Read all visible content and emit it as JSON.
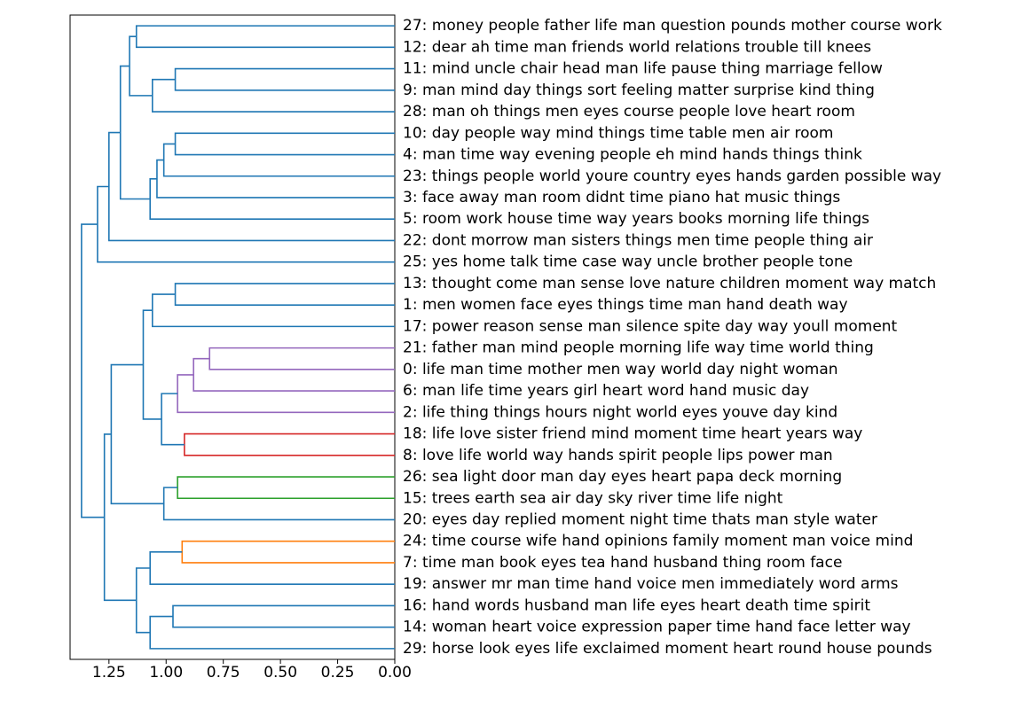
{
  "chart_data": {
    "type": "dendrogram",
    "orientation": "left",
    "xlabel": "",
    "ylabel": "",
    "xlim": [
      1.42,
      0.0
    ],
    "xticks": [
      1.25,
      1.0,
      0.75,
      0.5,
      0.25,
      0.0
    ],
    "xtick_labels": [
      "1.25",
      "1.00",
      "0.75",
      "0.50",
      "0.25",
      "0.00"
    ],
    "grid": false,
    "colors": {
      "blue": "#1f77b4",
      "orange": "#ff7f0e",
      "green": "#2ca02c",
      "red": "#d62728",
      "purple": "#9467bd"
    },
    "leaves": [
      {
        "id": 27,
        "label": "27: money people father life man question pounds mother course work"
      },
      {
        "id": 12,
        "label": "12: dear ah time man friends world relations trouble till knees"
      },
      {
        "id": 11,
        "label": "11: mind uncle chair head man life pause thing marriage fellow"
      },
      {
        "id": 9,
        "label": "9: man mind day things sort feeling matter surprise kind thing"
      },
      {
        "id": 28,
        "label": "28: man oh things men eyes course people love heart room"
      },
      {
        "id": 10,
        "label": "10: day people way mind things time table men air room"
      },
      {
        "id": 4,
        "label": "4: man time way evening people eh mind hands things think"
      },
      {
        "id": 23,
        "label": "23: things people world youre country eyes hands garden possible way"
      },
      {
        "id": 3,
        "label": "3: face away man room didnt time piano hat music things"
      },
      {
        "id": 5,
        "label": "5: room work house time way years books morning life things"
      },
      {
        "id": 22,
        "label": "22: dont morrow man sisters things men time people thing air"
      },
      {
        "id": 25,
        "label": "25: yes home talk time case way uncle brother people tone"
      },
      {
        "id": 13,
        "label": "13: thought come man sense love nature children moment way match"
      },
      {
        "id": 1,
        "label": "1: men women face eyes things time man hand death way"
      },
      {
        "id": 17,
        "label": "17: power reason sense man silence spite day way youll moment"
      },
      {
        "id": 21,
        "label": "21: father man mind people morning life way time world thing"
      },
      {
        "id": 0,
        "label": "0: life man time mother men way world day night woman"
      },
      {
        "id": 6,
        "label": "6: man life time years girl heart word hand music day"
      },
      {
        "id": 2,
        "label": "2: life thing things hours night world eyes youve day kind"
      },
      {
        "id": 18,
        "label": "18: life love sister friend mind moment time heart years way"
      },
      {
        "id": 8,
        "label": "8: love life world way hands spirit people lips power man"
      },
      {
        "id": 26,
        "label": "26: sea light door man day eyes heart papa deck morning"
      },
      {
        "id": 15,
        "label": "15: trees earth sea air day sky river time life night"
      },
      {
        "id": 20,
        "label": "20: eyes day replied moment night time thats man style water"
      },
      {
        "id": 24,
        "label": "24: time course wife hand opinions family moment man voice mind"
      },
      {
        "id": 7,
        "label": "7: time man book eyes tea hand husband thing room face"
      },
      {
        "id": 19,
        "label": "19: answer mr man time hand voice men immediately word arms"
      },
      {
        "id": 16,
        "label": "16: hand words husband man life eyes heart death time spirit"
      },
      {
        "id": 14,
        "label": "14: woman heart voice expression paper time hand face letter way"
      },
      {
        "id": 29,
        "label": "29: horse look eyes life exclaimed moment heart round house pounds"
      }
    ],
    "merges": [
      {
        "a": "L0",
        "b": "L1",
        "height": 1.13,
        "color": "blue"
      },
      {
        "a": "L2",
        "b": "L3",
        "height": 0.96,
        "color": "blue"
      },
      {
        "a": "N1",
        "b": "L4",
        "height": 1.06,
        "color": "blue"
      },
      {
        "a": "N0",
        "b": "N2",
        "height": 1.16,
        "color": "blue"
      },
      {
        "a": "L5",
        "b": "L6",
        "height": 0.96,
        "color": "blue"
      },
      {
        "a": "N4",
        "b": "L7",
        "height": 1.01,
        "color": "blue"
      },
      {
        "a": "N5",
        "b": "L8",
        "height": 1.04,
        "color": "blue"
      },
      {
        "a": "N6",
        "b": "L9",
        "height": 1.07,
        "color": "blue"
      },
      {
        "a": "N3",
        "b": "N7",
        "height": 1.2,
        "color": "blue"
      },
      {
        "a": "N8",
        "b": "L10",
        "height": 1.25,
        "color": "blue"
      },
      {
        "a": "N9",
        "b": "L11",
        "height": 1.3,
        "color": "blue"
      },
      {
        "a": "L12",
        "b": "L13",
        "height": 0.96,
        "color": "blue"
      },
      {
        "a": "N11",
        "b": "L14",
        "height": 1.06,
        "color": "blue"
      },
      {
        "a": "L15",
        "b": "L16",
        "height": 0.81,
        "color": "purple"
      },
      {
        "a": "N13",
        "b": "L17",
        "height": 0.88,
        "color": "purple"
      },
      {
        "a": "N14",
        "b": "L18",
        "height": 0.95,
        "color": "purple"
      },
      {
        "a": "L19",
        "b": "L20",
        "height": 0.92,
        "color": "red"
      },
      {
        "a": "N15",
        "b": "N16",
        "height": 1.02,
        "color": "blue"
      },
      {
        "a": "N12",
        "b": "N17",
        "height": 1.1,
        "color": "blue"
      },
      {
        "a": "L21",
        "b": "L22",
        "height": 0.95,
        "color": "green"
      },
      {
        "a": "N19",
        "b": "L23",
        "height": 1.01,
        "color": "blue"
      },
      {
        "a": "N18",
        "b": "N20",
        "height": 1.24,
        "color": "blue"
      },
      {
        "a": "L24",
        "b": "L25",
        "height": 0.93,
        "color": "orange"
      },
      {
        "a": "N22",
        "b": "L26",
        "height": 1.07,
        "color": "blue"
      },
      {
        "a": "L27",
        "b": "L28",
        "height": 0.97,
        "color": "blue"
      },
      {
        "a": "N24",
        "b": "L29",
        "height": 1.07,
        "color": "blue"
      },
      {
        "a": "N23",
        "b": "N25",
        "height": 1.13,
        "color": "blue"
      },
      {
        "a": "N21",
        "b": "N26",
        "height": 1.27,
        "color": "blue"
      },
      {
        "a": "N10",
        "b": "N27",
        "height": 1.37,
        "color": "blue"
      }
    ]
  }
}
